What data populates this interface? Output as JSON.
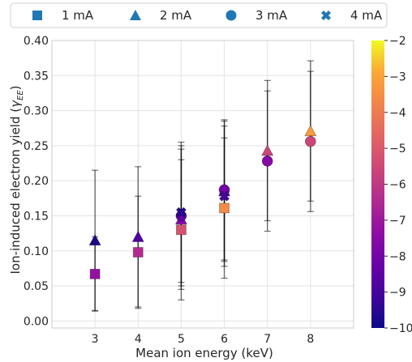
{
  "chart_data": {
    "type": "scatter",
    "xlabel": "Mean ion energy (keV)",
    "ylabel": "Ion-induced electron yield",
    "ylabel_symbol": "γ",
    "ylabel_sub": "EE",
    "xlim": [
      2,
      9
    ],
    "ylim": [
      -0.01,
      0.4
    ],
    "xticks": [
      "3",
      "4",
      "5",
      "6",
      "7",
      "8"
    ],
    "yticks": [
      "0.00",
      "0.05",
      "0.10",
      "0.15",
      "0.20",
      "0.25",
      "0.30",
      "0.35",
      "0.40"
    ],
    "grid": true,
    "legend_position": "top",
    "colorbar": {
      "min": -10,
      "max": -2,
      "ticks": [
        "−2",
        "−3",
        "−4",
        "−5",
        "−6",
        "−7",
        "−8",
        "−9",
        "−10"
      ],
      "colormap": "plasma"
    },
    "series": [
      {
        "name": "1 mA",
        "marker": "square",
        "color": "#1f77b4",
        "points": [
          {
            "x": 3,
            "y": 0.067,
            "err": 0.053,
            "c": -7.2
          },
          {
            "x": 4,
            "y": 0.098,
            "err": 0.08,
            "c": -6.4
          },
          {
            "x": 5,
            "y": 0.13,
            "err": 0.1,
            "c": -5.2
          },
          {
            "x": 6,
            "y": 0.161,
            "err": 0.1,
            "c": -3.6
          }
        ]
      },
      {
        "name": "2 mA",
        "marker": "triangle",
        "color": "#1f77b4",
        "points": [
          {
            "x": 3,
            "y": 0.115,
            "err": 0.1,
            "c": -9.8
          },
          {
            "x": 4,
            "y": 0.12,
            "err": 0.1,
            "c": -8.8
          },
          {
            "x": 5,
            "y": 0.145,
            "err": 0.1,
            "c": -7.6
          },
          {
            "x": 6,
            "y": 0.185,
            "err": 0.1,
            "c": -7.8
          },
          {
            "x": 7,
            "y": 0.243,
            "err": 0.1,
            "c": -5.6
          },
          {
            "x": 8,
            "y": 0.271,
            "err": 0.1,
            "c": -3.2
          }
        ]
      },
      {
        "name": "3 mA",
        "marker": "circle",
        "color": "#1f77b4",
        "points": [
          {
            "x": 5,
            "y": 0.15,
            "err": 0.1,
            "c": -8.4
          },
          {
            "x": 6,
            "y": 0.187,
            "err": 0.1,
            "c": -8.0
          },
          {
            "x": 7,
            "y": 0.228,
            "err": 0.1,
            "c": -7.6
          },
          {
            "x": 8,
            "y": 0.256,
            "err": 0.1,
            "c": -5.6
          }
        ]
      },
      {
        "name": "4 mA",
        "marker": "x",
        "color": "#1f77b4",
        "points": [
          {
            "x": 5,
            "y": 0.155,
            "err": 0.1,
            "c": -9.6
          },
          {
            "x": 6,
            "y": 0.178,
            "err": 0.1,
            "c": -9.0
          }
        ]
      }
    ]
  }
}
